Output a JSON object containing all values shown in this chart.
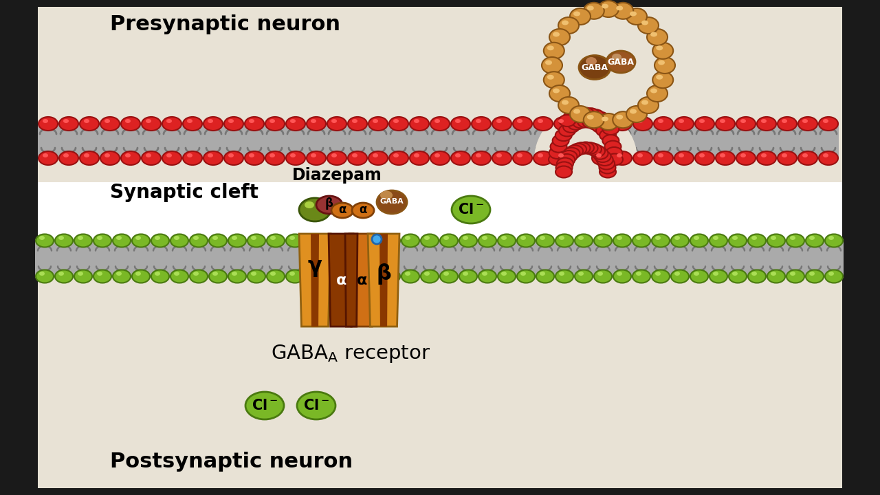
{
  "bg_outer": "#1a1a1a",
  "bg_main": "#e8e2d5",
  "bg_cleft": "#ffffff",
  "pre_label": "Presynaptic neuron",
  "cleft_label": "Synaptic cleft",
  "post_label": "Postsynaptic neuron",
  "diazepam_label": "Diazepam",
  "gaba_label": "GABA",
  "receptor_label": "GABA",
  "receptor_sub": "A",
  "receptor_label2": " receptor",
  "red_fill": "#dd2222",
  "red_edge": "#991111",
  "red_hi": "#ff5555",
  "gray_link": "#aaaaaa",
  "gray_dark": "#777777",
  "green_fill": "#7ab826",
  "green_edge": "#4a7a10",
  "green_hi": "#aade55",
  "orange_ves": "#d4923a",
  "orange_ves_edge": "#8a5515",
  "gaba_brown": "#7a4010",
  "gaba_hi": "#c08050",
  "gamma_col": "#e09020",
  "gamma_edge": "#906010",
  "alpha_col": "#d07015",
  "alpha_edge": "#804008",
  "beta_col": "#d07015",
  "beta_edge": "#804008",
  "dark_stripe": "#8a3800",
  "green_sub": "#6a8818",
  "green_sub_edge": "#3a5508",
  "diaz_red": "#993333",
  "diaz_red_edge": "#661111",
  "blue_dot": "#44aaee",
  "blue_dot_edge": "#2266aa",
  "cl_fill": "#7ab826",
  "cl_edge": "#4a7a10"
}
